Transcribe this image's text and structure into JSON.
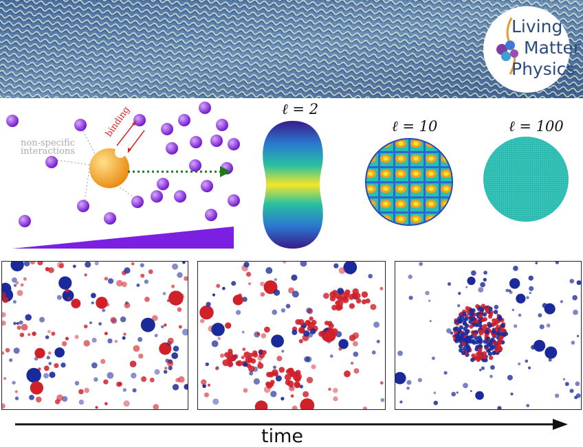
{
  "logo": {
    "line1": "Living",
    "line2": "Matter",
    "line3": "Physics"
  },
  "schematic": {
    "label_nonspecific_1": "non-specific",
    "label_nonspecific_2": "interactions",
    "label_binding": "binding"
  },
  "modes": [
    {
      "label": "ℓ = 2"
    },
    {
      "label": "ℓ = 10"
    },
    {
      "label": "ℓ = 100"
    }
  ],
  "timeline": {
    "label": "time"
  },
  "colors": {
    "particle_purple": "#8a2be2",
    "tracer_orange": "#f5a623",
    "arrow_green": "#1a7a1a",
    "red_particle": "#d0202a",
    "blue_particle": "#1a2a9a",
    "wedge": "#7b1fe0"
  }
}
